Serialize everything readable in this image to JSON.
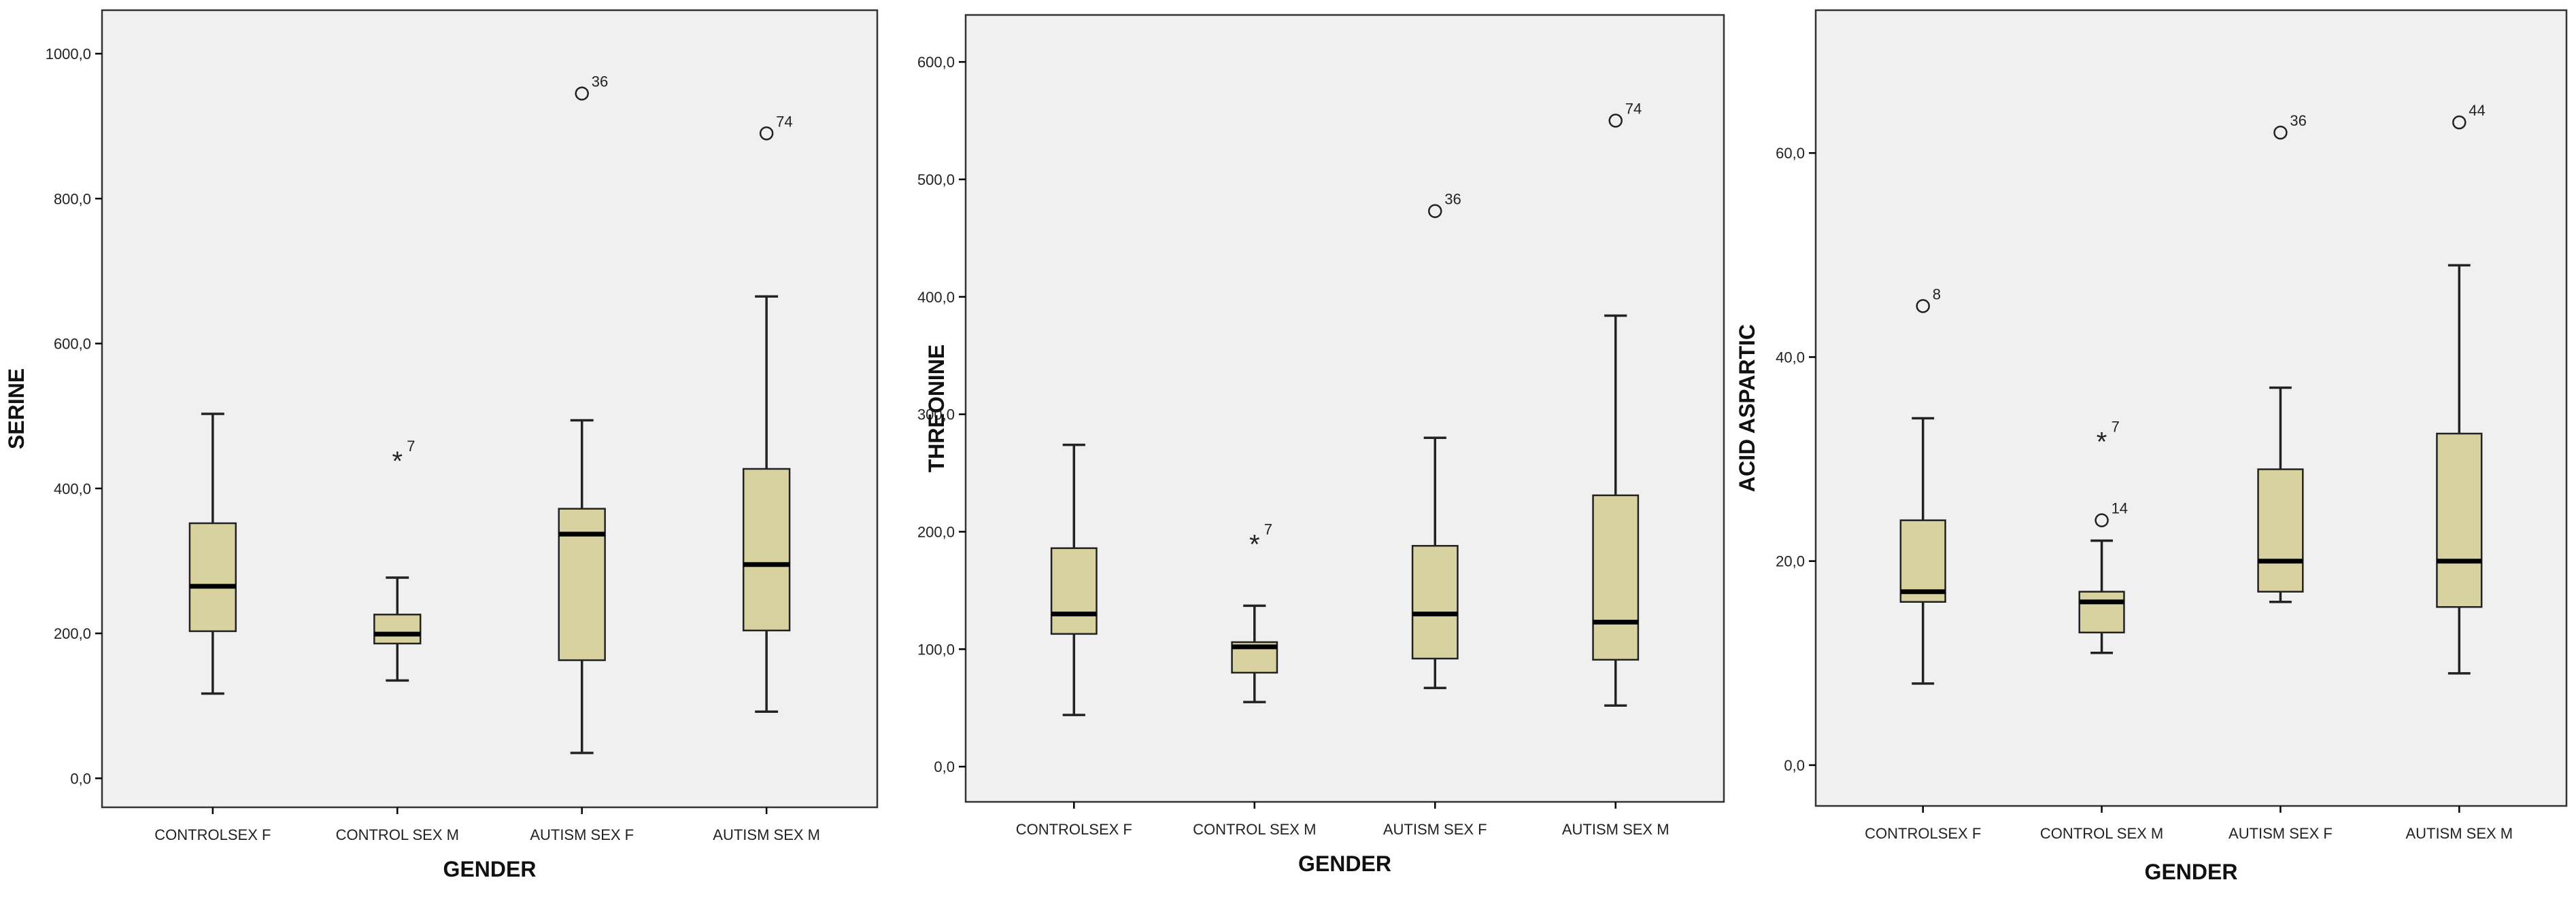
{
  "colors": {
    "box_fill": "#d8d2a0",
    "plot_bg": "#f0f0f0",
    "stroke": "#222222"
  },
  "chart_data": [
    {
      "type": "boxplot",
      "ylabel": "SERINE",
      "xlabel": "GENDER",
      "ylim": [
        -40,
        1060
      ],
      "yticks": [
        0,
        200,
        400,
        600,
        800,
        1000
      ],
      "ytick_labels": [
        "0,0",
        "200,0",
        "400,0",
        "600,0",
        "800,0",
        "1000,0"
      ],
      "categories": [
        "CONTROLSEX  F",
        "CONTROL SEX M",
        "AUTISM SEX F",
        "AUTISM SEX M"
      ],
      "boxes": [
        {
          "low": 117,
          "q1": 203,
          "median": 265,
          "q3": 352,
          "high": 503,
          "outliers": []
        },
        {
          "low": 135,
          "q1": 186,
          "median": 199,
          "q3": 226,
          "high": 277,
          "outliers": [
            {
              "value": 442,
              "label": "7",
              "marker": "star"
            }
          ]
        },
        {
          "low": 35,
          "q1": 163,
          "median": 337,
          "q3": 372,
          "high": 494,
          "outliers": [
            {
              "value": 945,
              "label": "36",
              "marker": "circle"
            }
          ]
        },
        {
          "low": 92,
          "q1": 204,
          "median": 295,
          "q3": 427,
          "high": 665,
          "outliers": [
            {
              "value": 890,
              "label": "74",
              "marker": "circle"
            }
          ]
        }
      ]
    },
    {
      "type": "boxplot",
      "ylabel": "THREONINE",
      "xlabel": "GENDER",
      "ylim": [
        -30,
        640
      ],
      "yticks": [
        0,
        100,
        200,
        300,
        400,
        500,
        600
      ],
      "ytick_labels": [
        "0,0",
        "100,0",
        "200,0",
        "300,0",
        "400,0",
        "500,0",
        "600,0"
      ],
      "categories": [
        "CONTROLSEX  F",
        "CONTROL SEX M",
        "AUTISM SEX F",
        "AUTISM SEX M"
      ],
      "boxes": [
        {
          "low": 44,
          "q1": 113,
          "median": 130,
          "q3": 186,
          "high": 274,
          "outliers": []
        },
        {
          "low": 55,
          "q1": 80,
          "median": 102,
          "q3": 106,
          "high": 137,
          "outliers": [
            {
              "value": 192,
              "label": "7",
              "marker": "star"
            }
          ]
        },
        {
          "low": 67,
          "q1": 92,
          "median": 130,
          "q3": 188,
          "high": 280,
          "outliers": [
            {
              "value": 473,
              "label": "36",
              "marker": "circle"
            }
          ]
        },
        {
          "low": 52,
          "q1": 91,
          "median": 123,
          "q3": 231,
          "high": 384,
          "outliers": [
            {
              "value": 550,
              "label": "74",
              "marker": "circle"
            }
          ]
        }
      ]
    },
    {
      "type": "boxplot",
      "ylabel": "ACID ASPARTIC",
      "xlabel": "GENDER",
      "ylim": [
        -4,
        74
      ],
      "yticks": [
        0,
        20,
        40,
        60
      ],
      "ytick_labels": [
        "0,0",
        "20,0",
        "40,0",
        "60,0"
      ],
      "categories": [
        "CONTROLSEX  F",
        "CONTROL SEX M",
        "AUTISM SEX F",
        "AUTISM SEX M"
      ],
      "boxes": [
        {
          "low": 8,
          "q1": 16,
          "median": 17,
          "q3": 24,
          "high": 34,
          "outliers": [
            {
              "value": 45,
              "label": "8",
              "marker": "circle"
            }
          ]
        },
        {
          "low": 11,
          "q1": 13,
          "median": 16,
          "q3": 17,
          "high": 22,
          "outliers": [
            {
              "value": 32,
              "label": "7",
              "marker": "star"
            },
            {
              "value": 24,
              "label": "14",
              "marker": "circle"
            }
          ]
        },
        {
          "low": 16,
          "q1": 17,
          "median": 20,
          "q3": 29,
          "high": 37,
          "outliers": [
            {
              "value": 62,
              "label": "36",
              "marker": "circle"
            }
          ]
        },
        {
          "low": 9,
          "q1": 15.5,
          "median": 20,
          "q3": 32.5,
          "high": 49,
          "outliers": [
            {
              "value": 63,
              "label": "44",
              "marker": "circle"
            }
          ]
        }
      ]
    }
  ]
}
